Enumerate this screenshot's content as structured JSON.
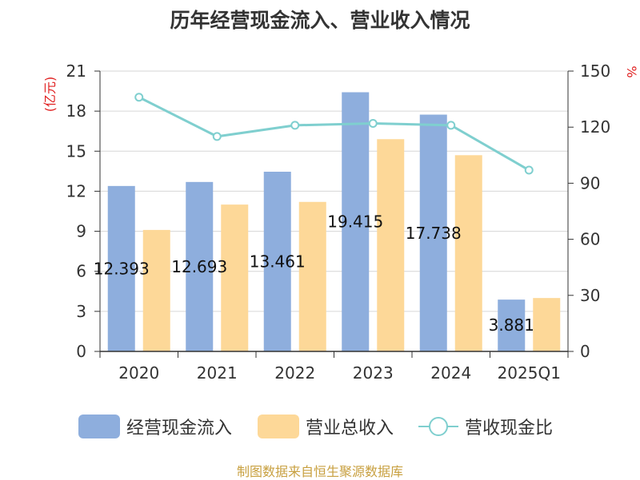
{
  "chart_data": {
    "type": "bar",
    "title": "历年经营现金流入、营业收入情况",
    "categories": [
      "2020",
      "2021",
      "2022",
      "2023",
      "2024",
      "2025Q1"
    ],
    "y_left": {
      "label": "(亿元)",
      "ylim": [
        0,
        21
      ],
      "ticks": [
        0,
        3,
        6,
        9,
        12,
        15,
        18,
        21
      ]
    },
    "y_right": {
      "label": "%",
      "ylim": [
        0,
        150
      ],
      "ticks": [
        0,
        30,
        60,
        90,
        120,
        150
      ]
    },
    "grid": true,
    "legend_position": "bottom",
    "series": [
      {
        "name": "经营现金流入",
        "type": "bar",
        "axis": "left",
        "color": "#8eaedd",
        "values": [
          12.393,
          12.693,
          13.461,
          19.415,
          17.738,
          3.881
        ],
        "labels": [
          "12.393",
          "12.693",
          "13.461",
          "19.415",
          "17.738",
          "3.881"
        ]
      },
      {
        "name": "营业总收入",
        "type": "bar",
        "axis": "left",
        "color": "#fdd898",
        "values": [
          9.1,
          11.0,
          11.2,
          15.9,
          14.7,
          4.0
        ]
      },
      {
        "name": "营收现金比",
        "type": "line",
        "axis": "right",
        "color": "#7fcfcf",
        "values": [
          136,
          115,
          121,
          122,
          121,
          97
        ]
      }
    ]
  },
  "source": "制图数据来自恒生聚源数据库"
}
